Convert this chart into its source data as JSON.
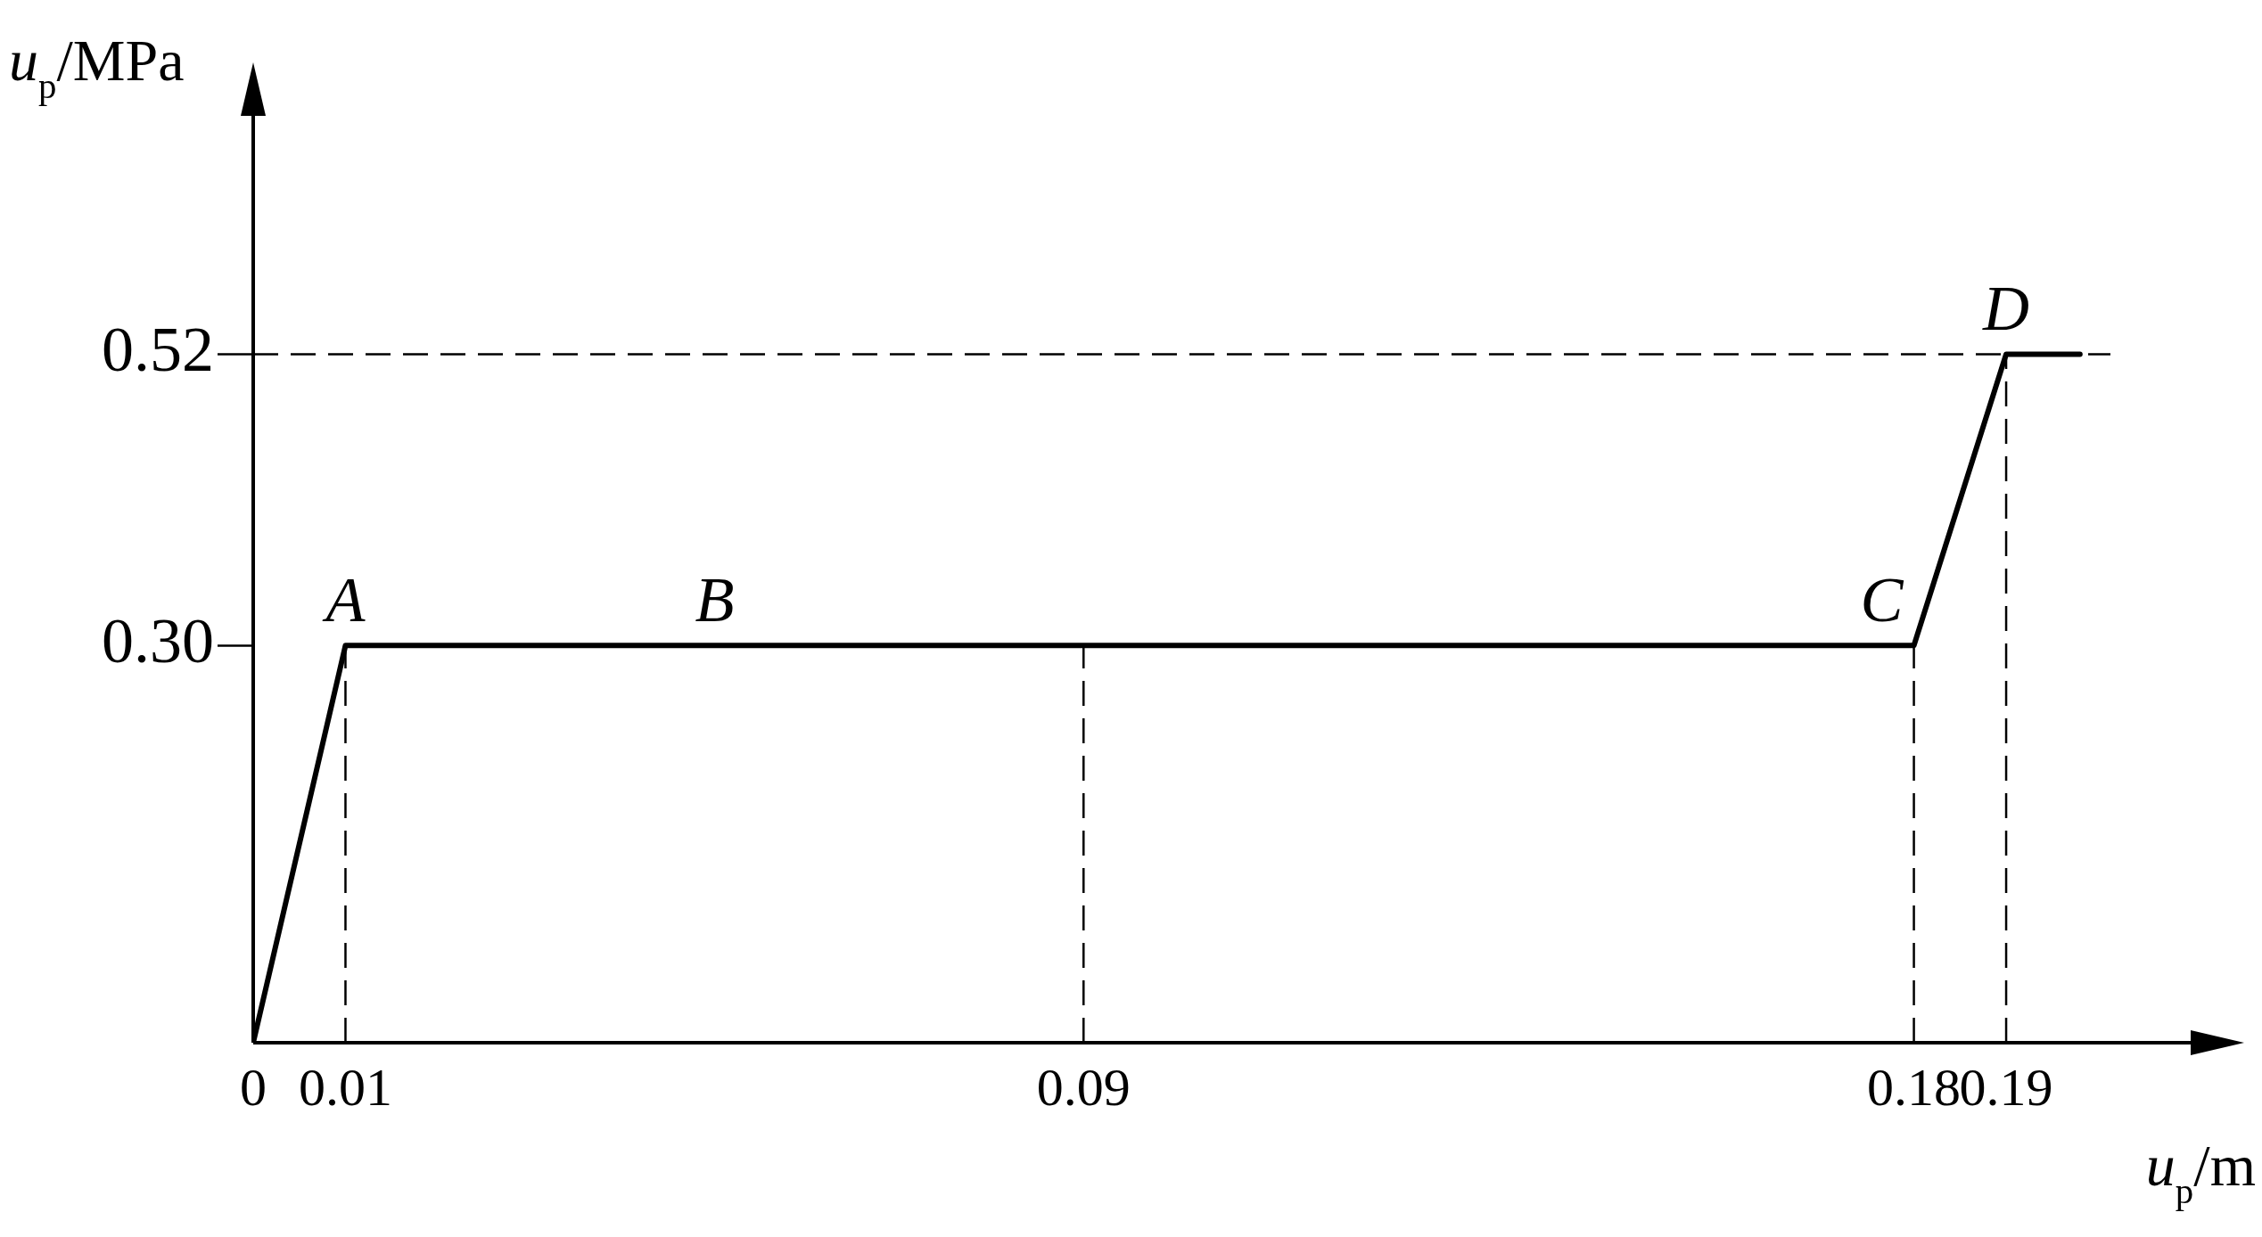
{
  "chart_data": {
    "type": "line",
    "xlabel": "u$_{p}$/m",
    "ylabel": "u$_{p}$/MPa",
    "series": [
      {
        "color": "#000000",
        "x": [
          0,
          0.01,
          0.09,
          0.18,
          0.19,
          0.198
        ],
        "values": [
          0,
          0.3,
          0.3,
          0.3,
          0.52,
          0.52
        ]
      }
    ],
    "xlim": [
      0,
      0.21
    ],
    "ylim": [
      0,
      0.7
    ],
    "xticks": [
      0,
      0.01,
      0.09,
      0.18,
      0.19
    ],
    "yticks": [
      {
        "value": 0.3,
        "label": "0.30"
      },
      0.52
    ],
    "ref_lines": [
      {
        "axis": "y",
        "value": 0.52,
        "line_style": "dashed",
        "color": "#000000"
      },
      {
        "axis": "x",
        "value": 0.01,
        "line_style": "dashed",
        "color": "#000000"
      },
      {
        "axis": "x",
        "value": 0.09,
        "line_style": "dashed",
        "color": "#000000"
      },
      {
        "axis": "x",
        "value": 0.18,
        "line_style": "dashed",
        "color": "#000000"
      },
      {
        "axis": "x",
        "value": 0.19,
        "line_style": "dashed",
        "color": "#000000"
      }
    ],
    "annotations": [
      {
        "text": "A",
        "x": 0.01,
        "y": 0.3
      },
      {
        "text": "B",
        "x": 0.05,
        "y": 0.3
      },
      {
        "text": "C",
        "x": 0.18,
        "y": 0.3
      },
      {
        "text": "D",
        "x": 0.19,
        "y": 0.52
      }
    ],
    "grid": false,
    "legend": false,
    "marker": "none",
    "line_style": "solid"
  }
}
